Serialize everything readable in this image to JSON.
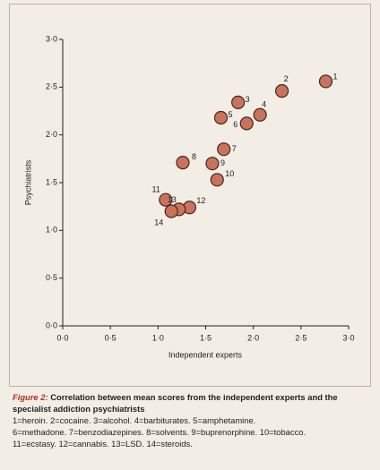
{
  "chart_data": {
    "type": "scatter",
    "x_label": "Independent experts",
    "y_label": "Psychiatrists",
    "labels": [
      "1",
      "2",
      "3",
      "4",
      "5",
      "6",
      "7",
      "8",
      "9",
      "10",
      "11",
      "12",
      "13",
      "14"
    ],
    "x": [
      2.76,
      2.3,
      1.84,
      2.07,
      1.66,
      1.93,
      1.69,
      1.26,
      1.57,
      1.62,
      1.08,
      1.33,
      1.22,
      1.14
    ],
    "y": [
      2.56,
      2.46,
      2.34,
      2.21,
      2.18,
      2.12,
      1.85,
      1.71,
      1.7,
      1.53,
      1.32,
      1.24,
      1.22,
      1.2
    ],
    "color": "#c9735e",
    "xlim": [
      0,
      3
    ],
    "ylim": [
      0,
      3
    ],
    "xticks": [
      {
        "value": 0,
        "label": "0·0"
      },
      {
        "value": 0.5,
        "label": "0·5"
      },
      {
        "value": 1,
        "label": "1·0"
      },
      {
        "value": 1.5,
        "label": "1·5"
      },
      {
        "value": 2,
        "label": "2·0"
      },
      {
        "value": 2.5,
        "label": "2·5"
      },
      {
        "value": 3,
        "label": "3·0"
      }
    ],
    "yticks": [
      {
        "value": 0,
        "label": "0·0"
      },
      {
        "value": 0.5,
        "label": "0·5"
      },
      {
        "value": 1,
        "label": "1·0"
      },
      {
        "value": 1.5,
        "label": "1·5"
      },
      {
        "value": 2,
        "label": "2·0"
      },
      {
        "value": 2.5,
        "label": "2·5"
      },
      {
        "value": 3,
        "label": "3·0"
      }
    ]
  },
  "caption": {
    "figure": "Figure 2:",
    "title": "Correlation between mean scores from the independent experts and the specialist addiction psychiatrists",
    "key": [
      "1=heroin. 2=cocaine. 3=alcohol. 4=barbiturates. 5=amphetamine.",
      "6=methadone. 7=benzodiazepines. 8=solvents. 9=buprenorphine. 10=tobacco.",
      "11=ecstasy. 12=cannabis. 13=LSD. 14=steroids."
    ]
  }
}
